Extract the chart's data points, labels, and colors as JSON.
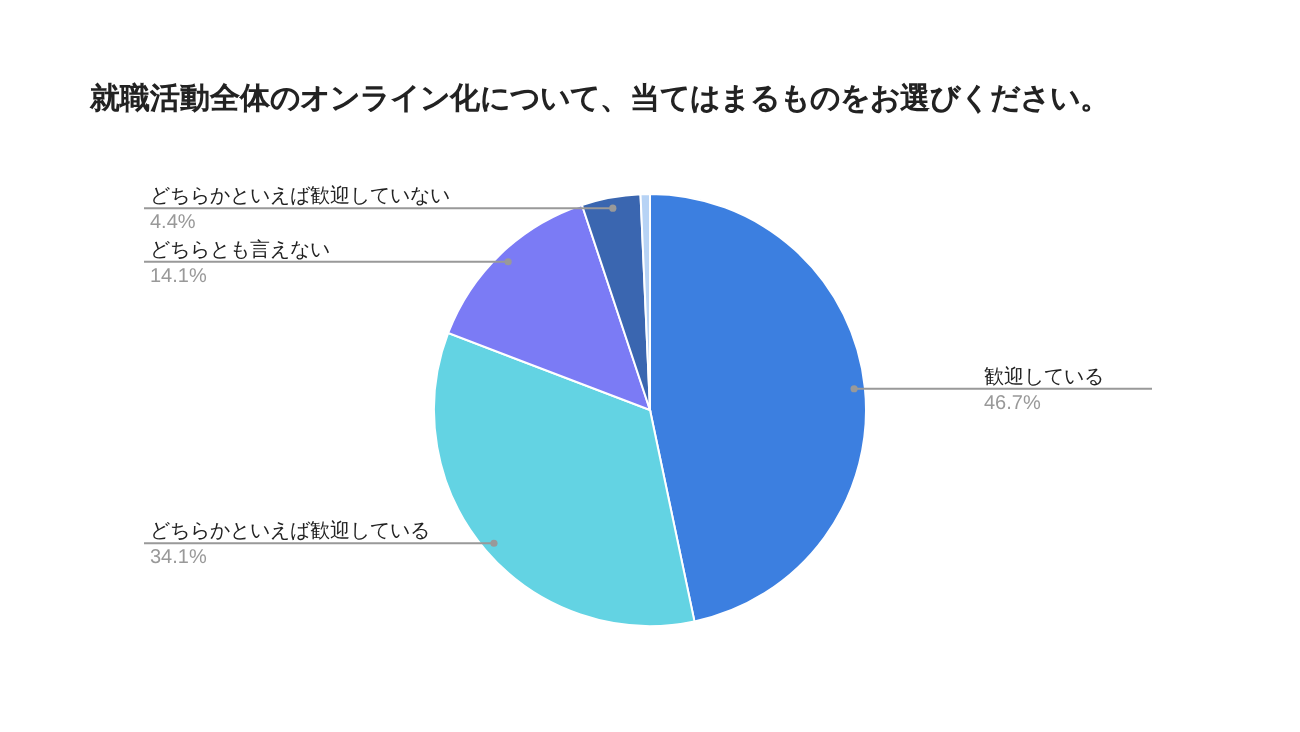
{
  "chart_data": {
    "type": "pie",
    "title": "就職活動全体のオンライン化について、当てはまるものをお選びください。",
    "categories": [
      "歓迎している",
      "どちらかといえば歓迎している",
      "どちらとも言えない",
      "どちらかといえば歓迎していない",
      null
    ],
    "values": [
      46.7,
      34.1,
      14.1,
      4.4,
      0.7
    ],
    "value_labels": [
      "46.7%",
      "34.1%",
      "14.1%",
      "4.4%",
      null
    ],
    "colors": [
      "#3c7fe0",
      "#63d3e3",
      "#7b7bf5",
      "#3a66b0",
      "#b7d3f5"
    ]
  }
}
